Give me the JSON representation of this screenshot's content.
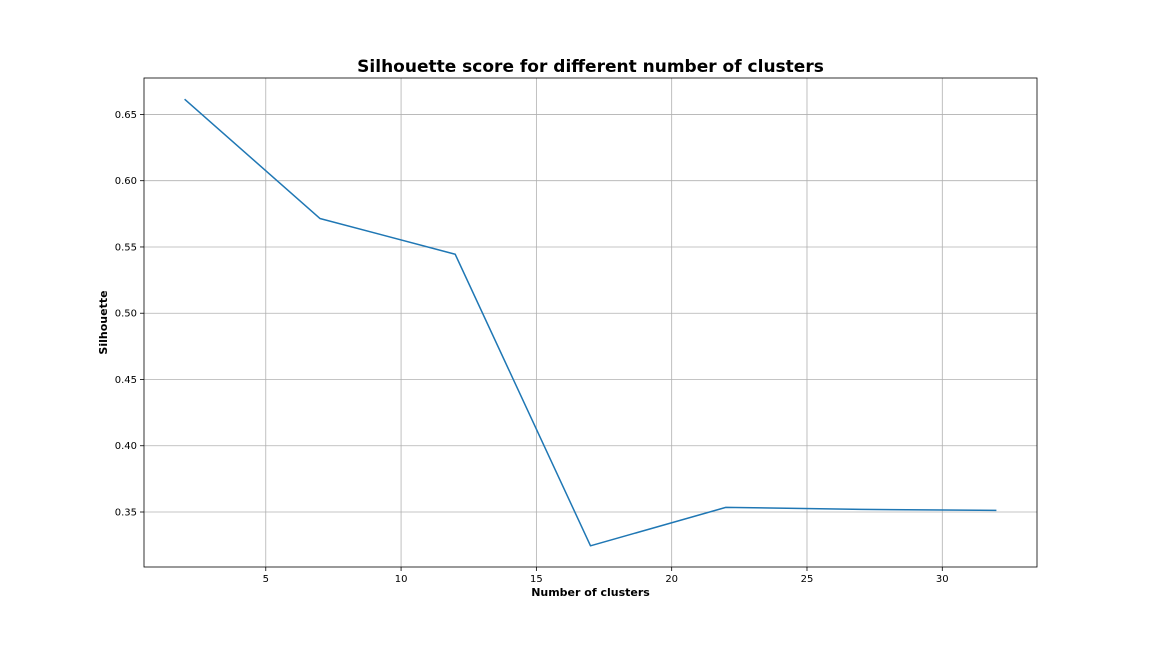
{
  "chart_data": {
    "type": "line",
    "title": "Silhouette score for different number of clusters",
    "xlabel": "Number of clusters",
    "ylabel": "Silhouette",
    "xlim": [
      0.5,
      33.5
    ],
    "ylim": [
      0.3085,
      0.6775
    ],
    "xticks": [
      5,
      10,
      15,
      20,
      25,
      30
    ],
    "yticks": [
      0.35,
      0.4,
      0.45,
      0.5,
      0.55,
      0.6,
      0.65
    ],
    "ytick_labels": [
      "0.35",
      "0.40",
      "0.45",
      "0.50",
      "0.55",
      "0.60",
      "0.65"
    ],
    "grid": true,
    "series": [
      {
        "color": "#1f77b4",
        "x": [
          2,
          7,
          12,
          17,
          22,
          27,
          32
        ],
        "y": [
          0.6615,
          0.5715,
          0.5445,
          0.3245,
          0.3535,
          0.352,
          0.3512
        ]
      }
    ]
  }
}
